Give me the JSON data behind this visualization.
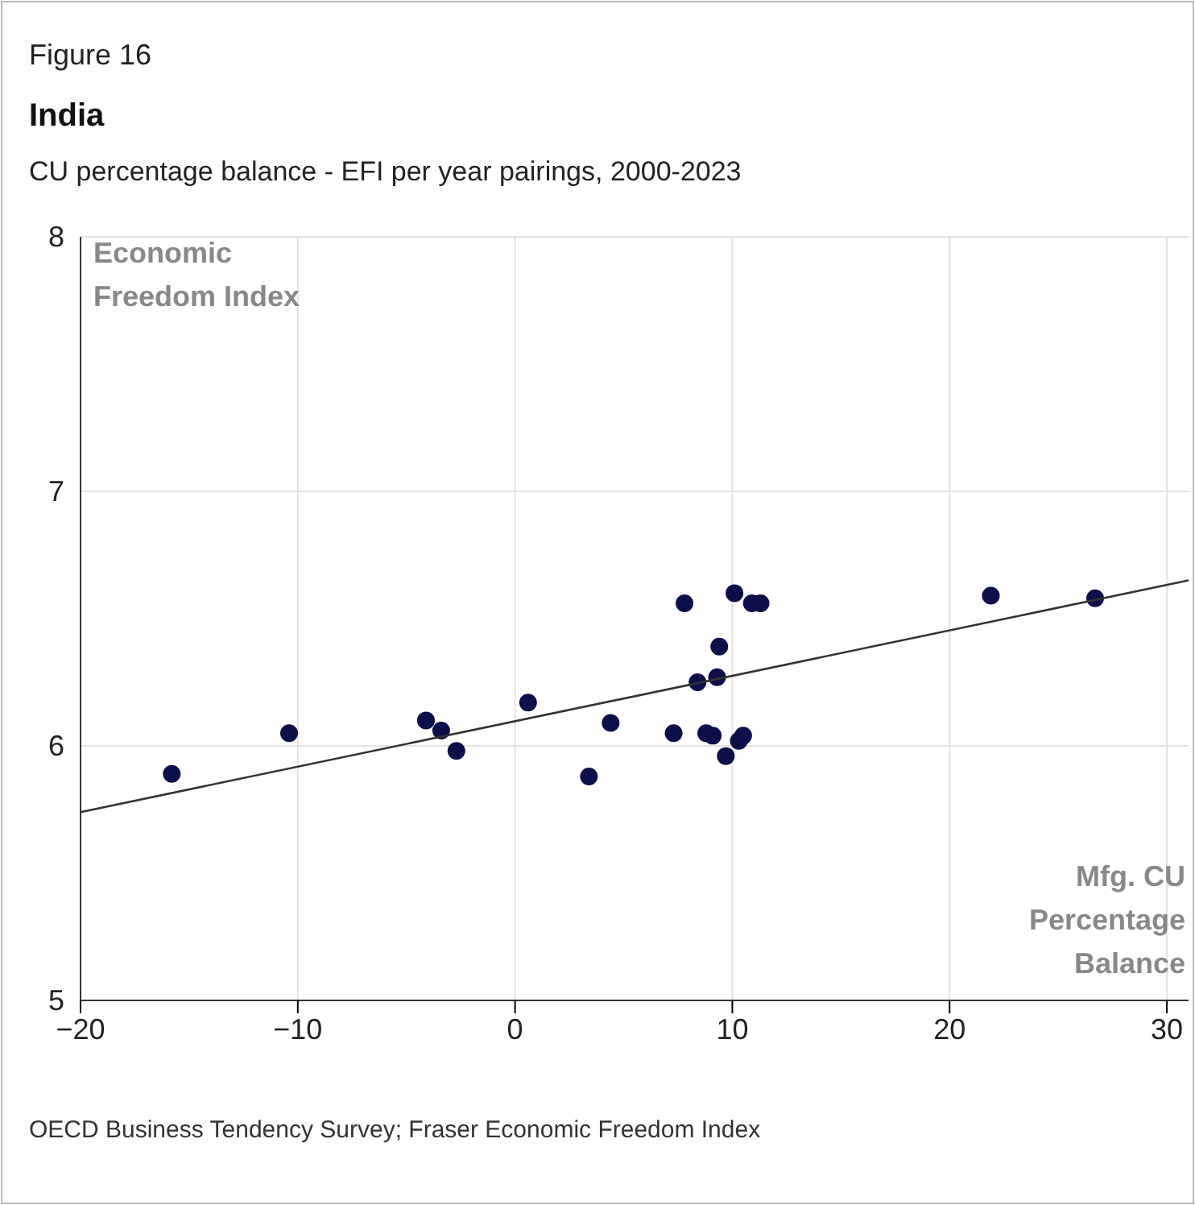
{
  "chart_data": {
    "type": "scatter",
    "title": "India",
    "subtitle": "CU percentage balance - EFI per year pairings, 2000-2023",
    "xlabel": "Mfg. CU Percentage Balance",
    "ylabel": "Economic Freedom Index",
    "annotations": [
      "Figure 16",
      "OECD Business Tendency Survey; Fraser Economic Freedom Index"
    ],
    "series": [
      {
        "marker": "circle",
        "color": "#0d0f4a",
        "x": [
          -15.8,
          -10.4,
          -4.1,
          -3.4,
          -2.7,
          0.6,
          3.4,
          4.4,
          7.3,
          7.8,
          8.4,
          8.8,
          9.1,
          9.3,
          9.4,
          9.7,
          10.1,
          10.3,
          10.5,
          10.9,
          11.3,
          21.9,
          26.7
        ],
        "values": [
          5.89,
          6.05,
          6.1,
          6.06,
          5.98,
          6.17,
          5.88,
          6.09,
          6.05,
          6.56,
          6.25,
          6.05,
          6.04,
          6.27,
          6.39,
          5.96,
          6.6,
          6.02,
          6.04,
          6.56,
          6.56,
          6.59,
          6.58
        ]
      },
      {
        "type": "line",
        "color": "#333333",
        "x": [
          -20,
          31
        ],
        "values": [
          5.74,
          6.65
        ]
      }
    ],
    "xlim": [
      -20,
      31
    ],
    "xticks": [
      -20,
      -10,
      0,
      10,
      20,
      30
    ],
    "ylim": [
      5,
      8
    ],
    "yticks": [
      5,
      6,
      7,
      8
    ],
    "grid": true,
    "line_style": "solid"
  }
}
